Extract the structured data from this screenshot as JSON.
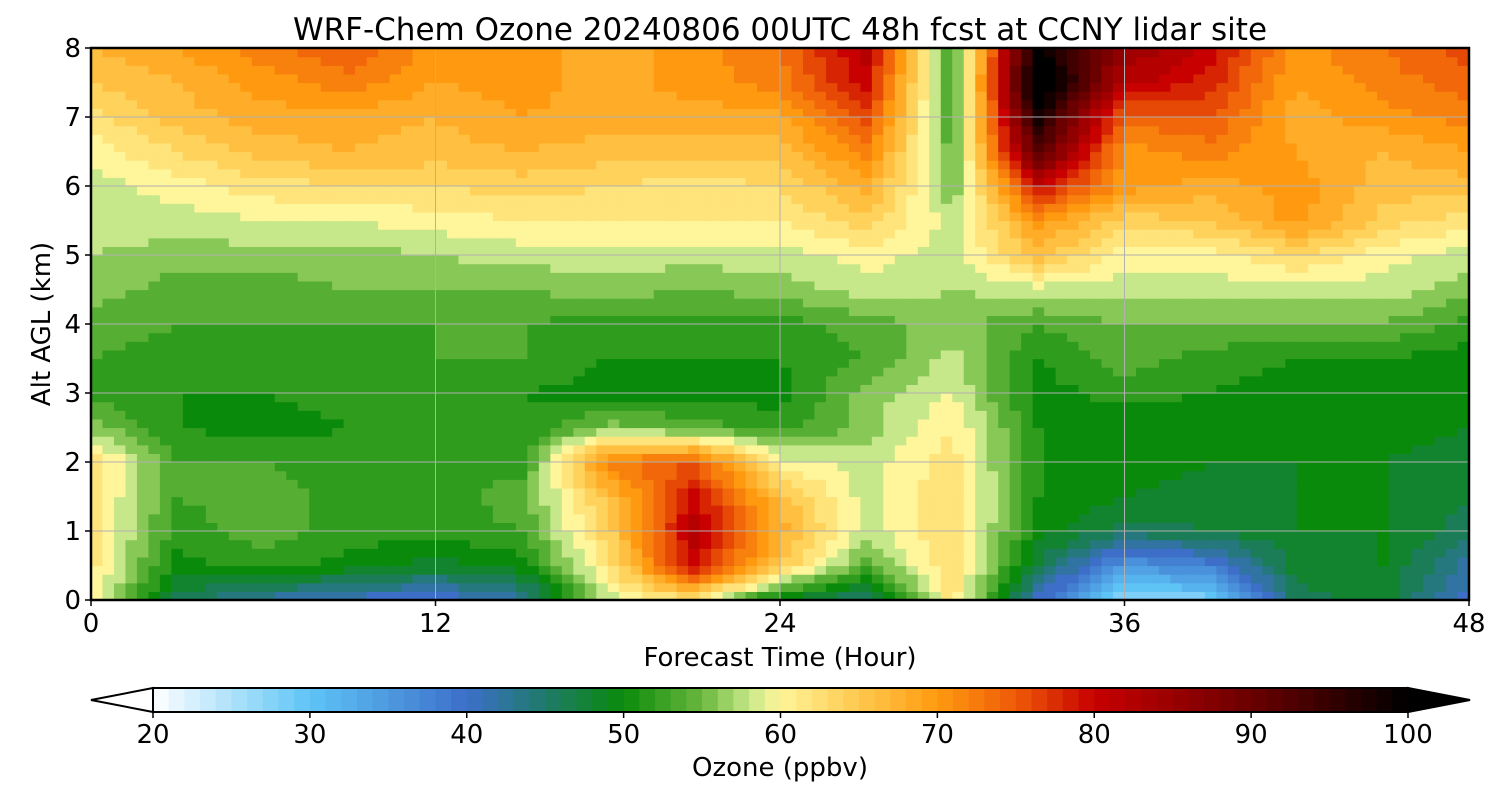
{
  "chart_data": {
    "type": "heatmap",
    "title": "WRF-Chem Ozone  20240806 00UTC 48h fcst at CCNY lidar site",
    "xlabel": "Forecast Time (Hour)",
    "ylabel": "Alt AGL (km)",
    "xlim": [
      0,
      48
    ],
    "ylim": [
      0,
      8
    ],
    "x_ticks": [
      "0",
      "12",
      "24",
      "36",
      "48"
    ],
    "y_ticks": [
      "0",
      "1",
      "2",
      "3",
      "4",
      "5",
      "6",
      "7",
      "8"
    ],
    "grid": true,
    "hours": [
      0,
      3,
      6,
      9,
      12,
      15,
      18,
      21,
      24,
      27,
      30,
      33,
      36,
      39,
      42,
      45,
      48
    ],
    "altitudes_km": [
      0,
      0.5,
      1,
      1.5,
      2,
      2.5,
      3,
      3.5,
      4,
      4.5,
      5,
      5.5,
      6,
      6.5,
      7,
      7.5,
      8
    ],
    "ozone_ppbv": [
      [
        60,
        46,
        42,
        40,
        39,
        42,
        58,
        62,
        48,
        44,
        62,
        40,
        26,
        28,
        46,
        48,
        40
      ],
      [
        62,
        50,
        52,
        50,
        48,
        50,
        62,
        80,
        65,
        54,
        63,
        47,
        35,
        38,
        48,
        49,
        42
      ],
      [
        62,
        52,
        54,
        52,
        52,
        53,
        64,
        82,
        68,
        58,
        63,
        50,
        46,
        47,
        49,
        49,
        46
      ],
      [
        62,
        53,
        54,
        52,
        52,
        54,
        66,
        80,
        66,
        58,
        63,
        51,
        49,
        48,
        49,
        49,
        47
      ],
      [
        63,
        53,
        53,
        52,
        53,
        52,
        72,
        75,
        60,
        58,
        62,
        51,
        50,
        49,
        49,
        49,
        48
      ],
      [
        56,
        51,
        50,
        51,
        52,
        51,
        56,
        54,
        52,
        56,
        61,
        51,
        49,
        49,
        49,
        50,
        49
      ],
      [
        52,
        51,
        51,
        52,
        51,
        51,
        50,
        50,
        50,
        56,
        59,
        50,
        52,
        51,
        50,
        50,
        50
      ],
      [
        53,
        52,
        52,
        52,
        53,
        53,
        51,
        51,
        51,
        53,
        58,
        51,
        54,
        52,
        51,
        51,
        50
      ],
      [
        54,
        53,
        53,
        53,
        53,
        53,
        52,
        52,
        52,
        54,
        56,
        53,
        55,
        55,
        55,
        55,
        52
      ],
      [
        56,
        54,
        54,
        55,
        55,
        55,
        56,
        55,
        56,
        58,
        57,
        58,
        58,
        58,
        58,
        58,
        56
      ],
      [
        57,
        56,
        56,
        56,
        57,
        58,
        58,
        58,
        58,
        60,
        58,
        66,
        60,
        60,
        63,
        60,
        58
      ],
      [
        58,
        58,
        59,
        59,
        60,
        61,
        61,
        61,
        61,
        64,
        58,
        70,
        64,
        65,
        70,
        64,
        62
      ],
      [
        58,
        60,
        62,
        63,
        63,
        64,
        63,
        62,
        63,
        68,
        55,
        80,
        70,
        68,
        70,
        66,
        66
      ],
      [
        60,
        63,
        66,
        67,
        66,
        67,
        66,
        66,
        66,
        72,
        54,
        92,
        70,
        72,
        69,
        67,
        69
      ],
      [
        62,
        66,
        68,
        68,
        67,
        69,
        68,
        68,
        68,
        76,
        53,
        98,
        74,
        75,
        68,
        70,
        72
      ],
      [
        65,
        67,
        70,
        72,
        69,
        70,
        68,
        70,
        72,
        80,
        52,
        104,
        82,
        78,
        69,
        72,
        74
      ],
      [
        67,
        69,
        72,
        75,
        70,
        70,
        68,
        70,
        73,
        82,
        52,
        100,
        85,
        80,
        70,
        73,
        76
      ]
    ],
    "colorbar": {
      "label": "Ozone  (ppbv)",
      "min": 20,
      "max": 100,
      "ticks": [
        "20",
        "30",
        "40",
        "50",
        "60",
        "70",
        "80",
        "90",
        "100"
      ],
      "extend": "both"
    },
    "colormap": [
      [
        20,
        "#ffffff"
      ],
      [
        30,
        "#5ec4f6"
      ],
      [
        40,
        "#3d6fc9"
      ],
      [
        45,
        "#1f7a6a"
      ],
      [
        50,
        "#0a8a0a"
      ],
      [
        55,
        "#69b83d"
      ],
      [
        58,
        "#c7e88a"
      ],
      [
        60,
        "#fff59a"
      ],
      [
        65,
        "#ffc94d"
      ],
      [
        70,
        "#ff9a10"
      ],
      [
        75,
        "#ee5a08"
      ],
      [
        80,
        "#c80000"
      ],
      [
        90,
        "#6a0000"
      ],
      [
        100,
        "#000000"
      ]
    ]
  }
}
